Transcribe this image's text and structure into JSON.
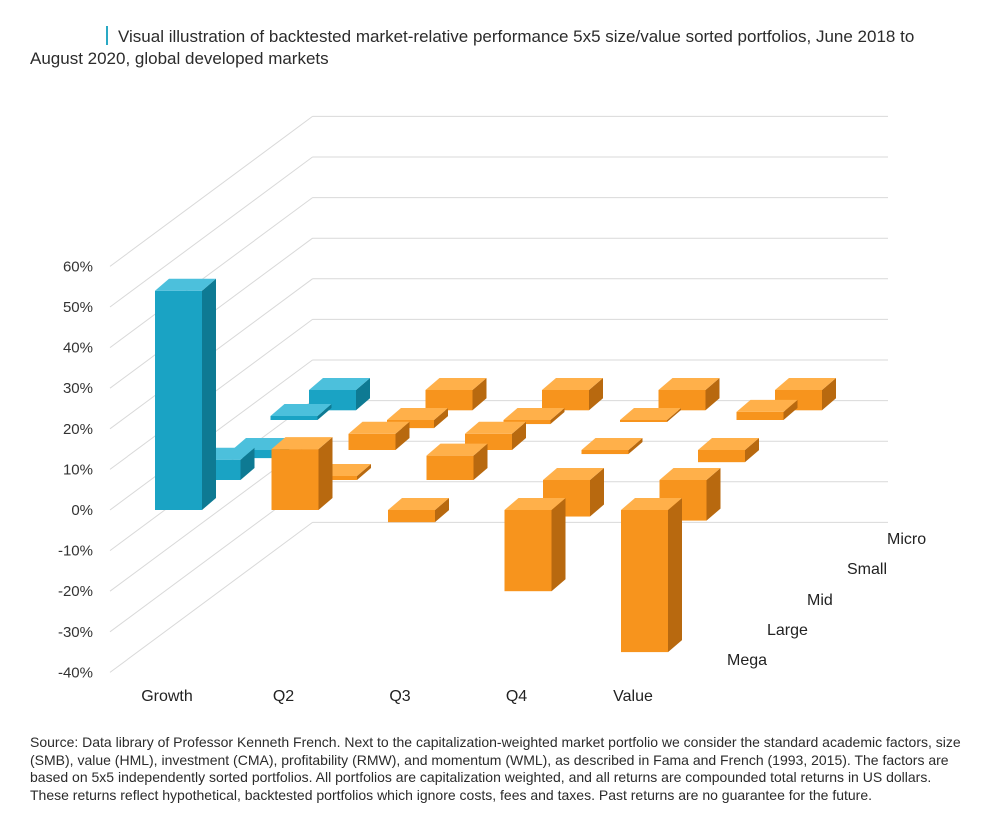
{
  "title": "Visual illustration of backtested market-relative performance 5x5 size/value sorted portfolios, June 2018 to August 2020, global developed markets",
  "source": "Source: Data library of Professor Kenneth French. Next to the capitalization-weighted market portfolio we consider the standard academic factors, size (SMB), value (HML), investment (CMA), profitability (RMW), and momentum (WML), as described in Fama and French (1993, 2015). The factors are based on 5x5 independently sorted portfolios. All portfolios are capitalization weighted, and all returns are compounded total returns in US dollars. These returns reflect hypothetical, backtested portfolios which ignore costs, fees and taxes. Past returns are no guarantee for the future.",
  "colors": {
    "growth_front": "#1aa3c4",
    "growth_side": "#0e7a93",
    "growth_top": "#4cc0dc",
    "other_front": "#f7941d",
    "other_side": "#b8690f",
    "other_top": "#ffb04a",
    "grid": "#d9d9d9",
    "title_bar": "#2aa9c4"
  },
  "chart_data": {
    "type": "bar3d",
    "title": "Visual illustration of backtested market-relative performance 5x5 size/value sorted portfolios, June 2018 to August 2020, global developed markets",
    "xlabel": "",
    "ylabel": "",
    "categories": [
      "Growth",
      "Q2",
      "Q3",
      "Q4",
      "Value"
    ],
    "ylim": [
      -40,
      60
    ],
    "ytick_labels": [
      "60%",
      "50%",
      "40%",
      "30%",
      "20%",
      "10%",
      "0%",
      "-10%",
      "-20%",
      "-30%",
      "-40%"
    ],
    "yticks": [
      60,
      50,
      40,
      30,
      20,
      10,
      0,
      -10,
      -20,
      -30,
      -40
    ],
    "grid": true,
    "series": [
      {
        "name": "Mega",
        "values": [
          54,
          15,
          -3,
          -20,
          -35
        ]
      },
      {
        "name": "Large",
        "values": [
          5,
          1,
          6,
          -9,
          -10
        ]
      },
      {
        "name": "Mid",
        "values": [
          -2,
          4,
          4,
          -1,
          -3
        ]
      },
      {
        "name": "Small",
        "values": [
          1,
          -2,
          -1,
          0,
          2
        ]
      },
      {
        "name": "Micro",
        "values": [
          -5,
          -5,
          -5,
          -5,
          -5
        ]
      }
    ]
  }
}
